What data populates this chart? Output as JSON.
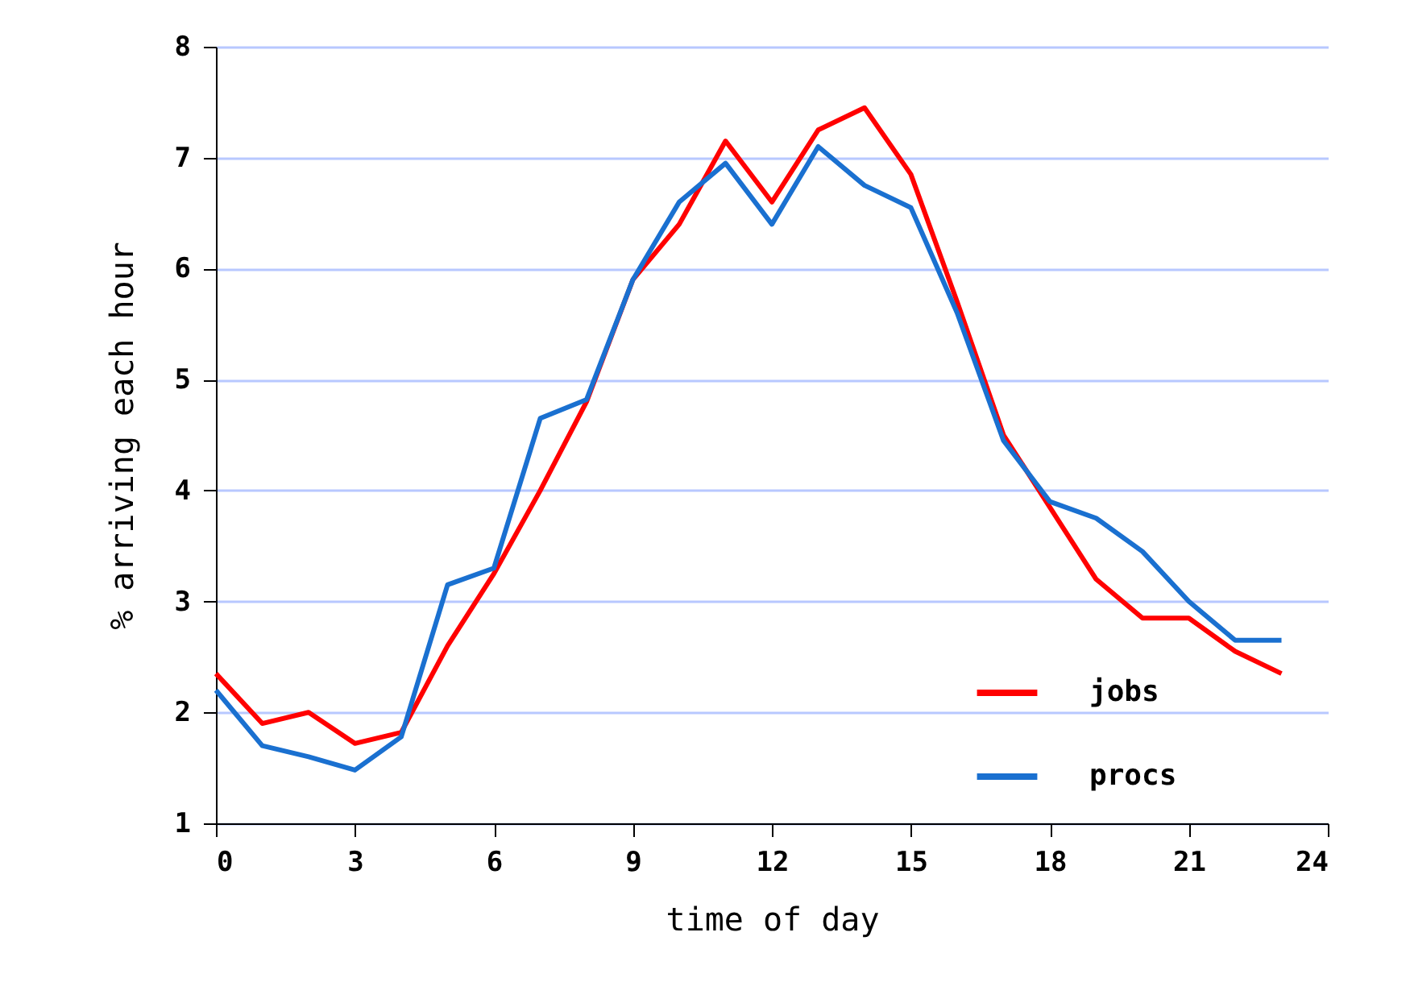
{
  "chart_data": {
    "type": "line",
    "xlabel": "time of day",
    "ylabel": "% arriving each hour",
    "x": [
      0,
      1,
      2,
      3,
      4,
      5,
      6,
      7,
      8,
      9,
      10,
      11,
      12,
      13,
      14,
      15,
      16,
      17,
      18,
      19,
      20,
      21,
      22,
      23
    ],
    "series": [
      {
        "name": "jobs",
        "color": "#ff0000",
        "values": [
          2.35,
          1.9,
          2.0,
          1.72,
          1.82,
          2.6,
          3.25,
          4.0,
          4.8,
          5.9,
          6.4,
          7.15,
          6.6,
          7.25,
          7.45,
          6.85,
          5.7,
          4.5,
          3.85,
          3.2,
          2.85,
          2.85,
          2.55,
          2.35
        ]
      },
      {
        "name": "procs",
        "color": "#1a70d0",
        "values": [
          2.2,
          1.7,
          1.6,
          1.48,
          1.78,
          3.15,
          3.3,
          4.65,
          4.82,
          5.9,
          6.6,
          6.95,
          6.4,
          7.1,
          6.75,
          6.55,
          5.6,
          4.45,
          3.9,
          3.75,
          3.45,
          3.0,
          2.65,
          2.65
        ]
      }
    ],
    "xlim": [
      0,
      24
    ],
    "xticks": [
      0,
      3,
      6,
      9,
      12,
      15,
      18,
      21,
      24
    ],
    "ylim": [
      1,
      8
    ],
    "yticks": [
      1,
      2,
      3,
      4,
      5,
      6,
      7,
      8
    ],
    "grid": "y",
    "legend": "bottom right",
    "marker": "none",
    "line_style": "solid"
  }
}
